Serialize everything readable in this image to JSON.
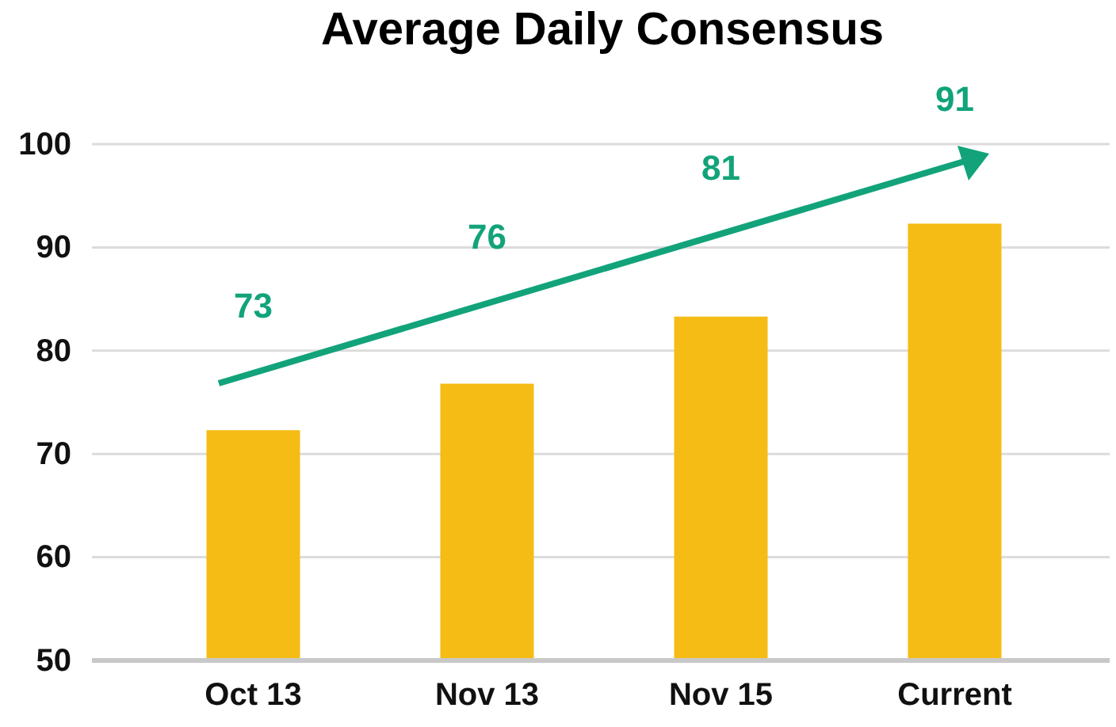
{
  "chart_data": {
    "type": "bar",
    "title": "Average Daily Consensus",
    "categories": [
      "Oct 13",
      "Nov 13",
      "Nov 15",
      "Current"
    ],
    "values": [
      72.3,
      76.8,
      83.3,
      92.3
    ],
    "color": "#f5bc16",
    "ylim": [
      50,
      100
    ],
    "yticks": [
      50,
      60,
      70,
      80,
      90,
      100
    ],
    "grid": "y",
    "annotations": [
      "73",
      "76",
      "81",
      "91"
    ]
  }
}
